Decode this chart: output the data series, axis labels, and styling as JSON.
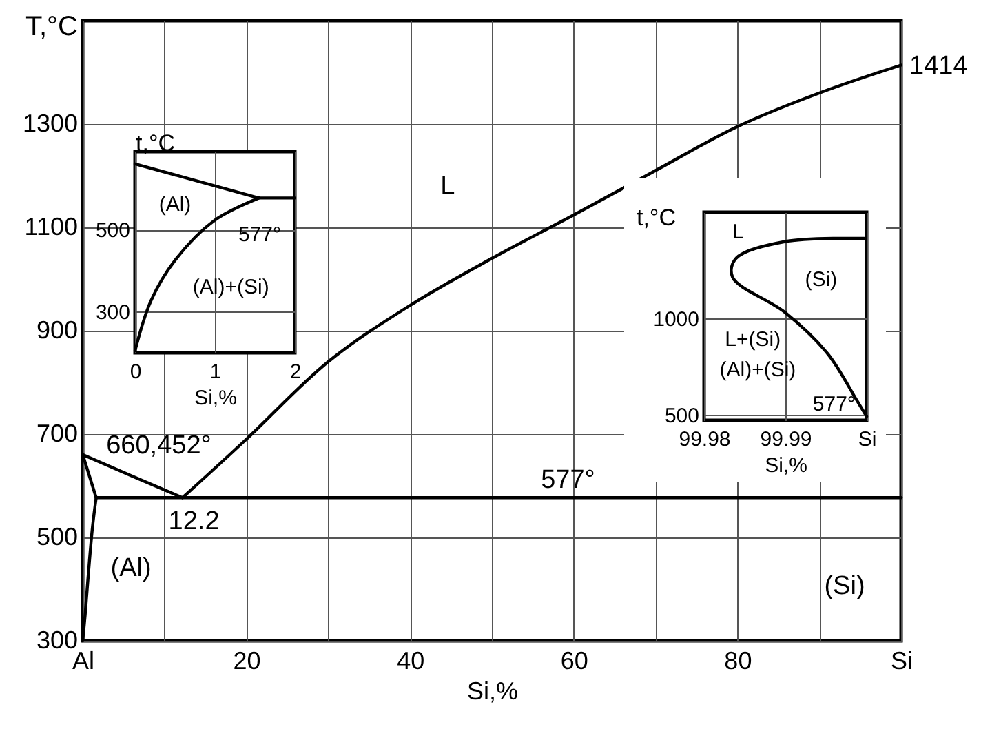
{
  "chart_data": [
    {
      "type": "line",
      "xlabel": "Si,%",
      "ylabel": "T,°C",
      "xlim": [
        0,
        100
      ],
      "ylim": [
        300,
        1500
      ],
      "xticks": [
        {
          "value": 0,
          "label": "Al"
        },
        {
          "value": 10,
          "label": null
        },
        20,
        {
          "value": 30,
          "label": null
        },
        40,
        {
          "value": 50,
          "label": null
        },
        60,
        {
          "value": 70,
          "label": null
        },
        80,
        {
          "value": 90,
          "label": null
        },
        {
          "value": 100,
          "label": "Si"
        }
      ],
      "yticks": [
        300,
        500,
        700,
        900,
        1100,
        1300
      ],
      "grid": true,
      "marker": "none",
      "line_style": "solid",
      "series": [
        {
          "color": "#000000",
          "x": [
            0,
            6,
            12.2
          ],
          "values": [
            660.452,
            619,
            577
          ]
        },
        {
          "color": "#000000",
          "x": [
            12.2,
            20,
            30,
            40,
            50,
            60,
            70,
            80,
            90,
            100
          ],
          "values": [
            577,
            690,
            840,
            949,
            1040,
            1124,
            1210,
            1295,
            1360,
            1414
          ]
        },
        {
          "color": "#000000",
          "x": [
            0,
            0.8,
            1.65
          ],
          "values": [
            660.452,
            620,
            577
          ]
        },
        {
          "color": "#000000",
          "x": [
            1.65,
            1.2,
            0.7,
            0.3,
            0
          ],
          "values": [
            577,
            520,
            430,
            350,
            300
          ]
        },
        {
          "color": "#000000",
          "x": [
            1.65,
            100
          ],
          "values": [
            577,
            577
          ]
        }
      ],
      "annotations": [
        "L",
        "660,452°",
        "12.2",
        "577°",
        "(Al)",
        "(Si)",
        {
          "text": "1414",
          "x": 100,
          "y": 1414
        }
      ]
    },
    {
      "type": "line",
      "xlabel": "Si,%",
      "ylabel": "t,°C",
      "xlim": [
        0,
        2
      ],
      "ylim": [
        200,
        690
      ],
      "xticks": [
        0,
        1,
        2
      ],
      "yticks": [
        300,
        500
      ],
      "grid": true,
      "marker": "none",
      "line_style": "solid",
      "series": [
        {
          "color": "#000000",
          "x": [
            0,
            1.55,
            2
          ],
          "values": [
            660,
            577,
            577
          ]
        },
        {
          "color": "#000000",
          "x": [
            1.55,
            1.0,
            0.5,
            0.2,
            0
          ],
          "values": [
            577,
            523,
            425,
            327,
            205
          ]
        }
      ],
      "annotations": [
        "(Al)",
        "577°",
        "(Al)+(Si)"
      ]
    },
    {
      "type": "line",
      "xlabel": "Si,%",
      "ylabel": "t,°C",
      "xlim": [
        99.98,
        100
      ],
      "ylim": [
        470,
        1550
      ],
      "xticks": [
        99.98,
        99.99,
        {
          "value": 100,
          "label": "Si"
        }
      ],
      "yticks": [
        500,
        1000
      ],
      "grid": true,
      "marker": "none",
      "line_style": "solid",
      "series": [
        {
          "color": "#000000",
          "x": [
            99.9997,
            99.9899,
            99.9839,
            99.9835,
            99.99,
            99.9952,
            99.9988,
            100
          ],
          "values": [
            1414,
            1397,
            1309,
            1213,
            1029,
            816,
            573,
            490
          ]
        }
      ],
      "annotations": [
        "L",
        "(Si)",
        "L+(Si)",
        "(Al)+(Si)",
        "577°"
      ]
    }
  ]
}
